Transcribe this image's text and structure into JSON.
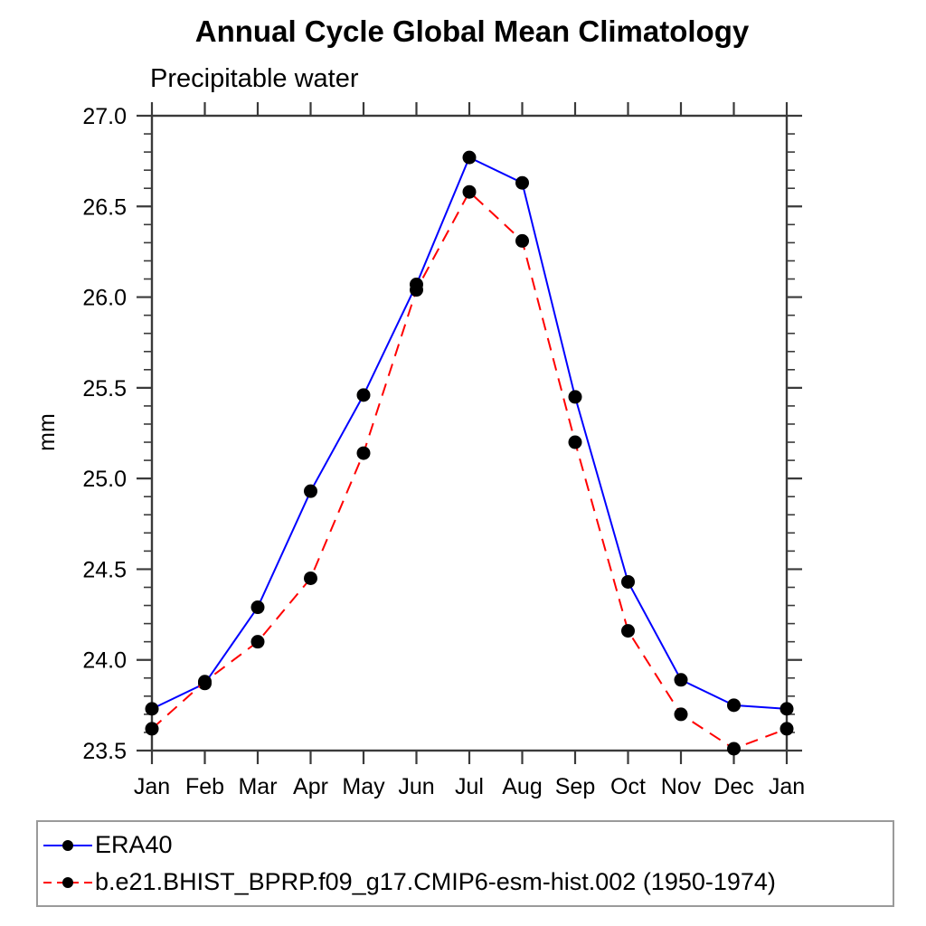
{
  "header": {
    "title": "Annual Cycle Global Mean Climatology",
    "subtitle": "Precipitable water"
  },
  "axes": {
    "ylabel": "mm",
    "ytick_labels": [
      "23.5",
      "24.0",
      "24.5",
      "25.0",
      "25.5",
      "26.0",
      "26.5",
      "27.0"
    ]
  },
  "chart_data": {
    "type": "line",
    "title": "Annual Cycle Global Mean Climatology",
    "subtitle": "Precipitable water",
    "xlabel": "",
    "ylabel": "mm",
    "categories": [
      "Jan",
      "Feb",
      "Mar",
      "Apr",
      "May",
      "Jun",
      "Jul",
      "Aug",
      "Sep",
      "Oct",
      "Nov",
      "Dec",
      "Jan"
    ],
    "ylim": [
      23.5,
      27.0
    ],
    "ytick_step": 0.5,
    "yminor_step": 0.1,
    "grid": false,
    "legend_position": "bottom",
    "marker_color": "#000000",
    "series": [
      {
        "name": "ERA40",
        "color": "#0000ff",
        "line_style": "solid",
        "marker": "circle",
        "values": [
          23.73,
          23.87,
          24.29,
          24.93,
          25.46,
          26.07,
          26.77,
          26.63,
          25.45,
          24.43,
          23.89,
          23.75,
          23.73
        ]
      },
      {
        "name": "b.e21.BHIST_BPRP.f09_g17.CMIP6-esm-hist.002 (1950-1974)",
        "color": "#ff0000",
        "line_style": "dashed",
        "marker": "circle",
        "values": [
          23.62,
          23.88,
          24.1,
          24.45,
          25.14,
          26.04,
          26.58,
          26.31,
          25.2,
          24.16,
          23.7,
          23.51,
          23.62
        ]
      }
    ]
  }
}
